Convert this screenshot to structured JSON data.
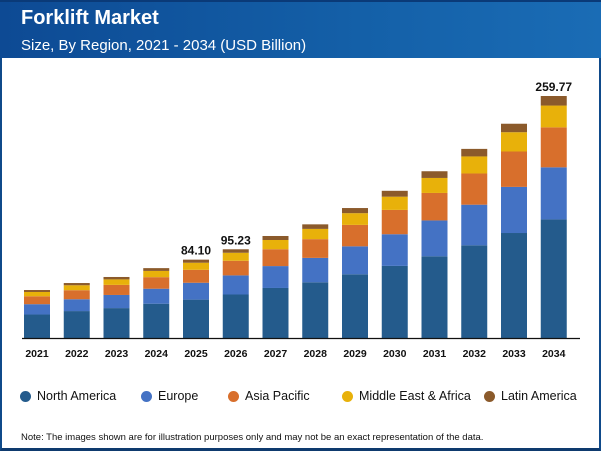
{
  "header": {
    "title": "Forklift Market",
    "subtitle": "Size, By Region, 2021 - 2034 (USD Billion)"
  },
  "chart_data": {
    "type": "bar",
    "stacked": true,
    "categories": [
      "2021",
      "2022",
      "2023",
      "2024",
      "2025",
      "2026",
      "2027",
      "2028",
      "2029",
      "2030",
      "2031",
      "2032",
      "2033",
      "2034"
    ],
    "series": [
      {
        "name": "North America",
        "color": "#245b8c",
        "values": [
          25.2,
          28.9,
          32.1,
          36.8,
          41.2,
          46.7,
          53.7,
          59.8,
          68.4,
          77.4,
          87.7,
          99.5,
          112.7,
          127.3
        ]
      },
      {
        "name": "Europe",
        "color": "#4472c4",
        "values": [
          11.1,
          12.7,
          14.1,
          16.1,
          18.1,
          20.5,
          23.5,
          26.2,
          30.0,
          34.0,
          38.5,
          43.6,
          49.5,
          55.9
        ]
      },
      {
        "name": "Asia Pacific",
        "color": "#d86f2c",
        "values": [
          8.5,
          9.7,
          10.8,
          12.4,
          13.9,
          15.7,
          18.1,
          20.1,
          23.0,
          26.1,
          29.5,
          33.5,
          38.0,
          42.9
        ]
      },
      {
        "name": "Middle East & Africa",
        "color": "#e8b10a",
        "values": [
          4.6,
          5.3,
          5.9,
          6.7,
          7.6,
          8.6,
          9.9,
          11.0,
          12.6,
          14.2,
          16.1,
          18.3,
          20.7,
          23.4
        ]
      },
      {
        "name": "Latin America",
        "color": "#8b5a2b",
        "values": [
          2.1,
          2.4,
          2.6,
          3.0,
          3.3,
          3.73,
          4.3,
          4.9,
          5.5,
          6.3,
          7.2,
          8.1,
          9.1,
          10.27
        ]
      }
    ],
    "data_labels": [
      {
        "category": "2025",
        "text": "84.10"
      },
      {
        "category": "2026",
        "text": "95.23"
      },
      {
        "category": "2034",
        "text": "259.77"
      }
    ],
    "ylim": [
      0,
      260
    ],
    "grid": false,
    "legend_position": "bottom"
  },
  "note": "Note: The images shown are for illustration purposes only and may not be an exact representation of the data."
}
